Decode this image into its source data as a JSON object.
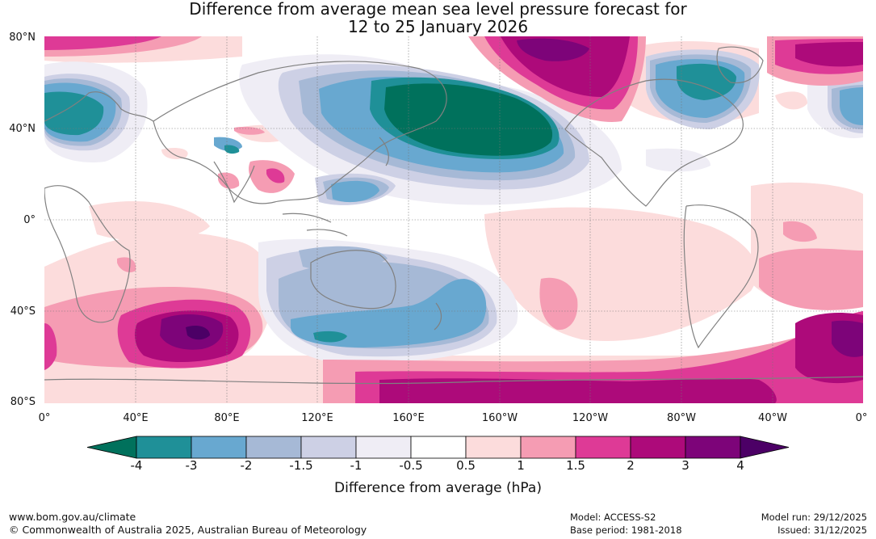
{
  "title": {
    "line1": "Difference from average mean sea level pressure forecast for",
    "line2": "12 to 25 January 2026"
  },
  "map": {
    "lat_labels": [
      "80°N",
      "40°N",
      "0°",
      "40°S",
      "80°S"
    ],
    "lon_labels": [
      "0°",
      "40°E",
      "80°E",
      "120°E",
      "160°E",
      "160°W",
      "120°W",
      "80°W",
      "40°W",
      "0°"
    ],
    "colors": {
      "coast": "#808080",
      "grid": "#777777"
    }
  },
  "colorbar": {
    "title": "Difference from average (hPa)",
    "ticks": [
      "-4",
      "-3",
      "-2",
      "-1.5",
      "-1",
      "-0.5",
      "0.5",
      "1",
      "1.5",
      "2",
      "3",
      "4"
    ],
    "colors": [
      "#00715c",
      "#1f9098",
      "#68a8d0",
      "#a6b9d6",
      "#cdd0e5",
      "#efedf5",
      "#ffffff",
      "#fcdcdc",
      "#f59cb3",
      "#de3a96",
      "#ad0a7a",
      "#7d0479",
      "#4c0066"
    ]
  },
  "footer": {
    "website": "www.bom.gov.au/climate",
    "copyright": "© Commonwealth of Australia 2025, Australian Bureau of Meteorology",
    "model": "Model: ACCESS-S2",
    "base_period": "Base period: 1981-2018",
    "model_run": "Model run: 29/12/2025",
    "issued": "Issued: 31/12/2025"
  }
}
